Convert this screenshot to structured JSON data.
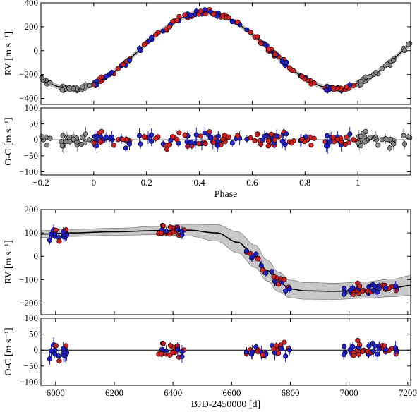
{
  "chart_data": [
    {
      "type": "scatter",
      "ylabel": "RV [m s⁻¹]",
      "xlim": [
        -0.2,
        1.2
      ],
      "ylim": [
        -450,
        400
      ],
      "xticks": [
        -0.2,
        0,
        0.2,
        0.4,
        0.6,
        0.8,
        1
      ],
      "yticks": [
        -400,
        -200,
        0,
        200,
        400
      ],
      "model": {
        "amplitude": 320,
        "peak_phase": 0.42
      },
      "band": "model uncertainty band (gray)",
      "series_colors": {
        "repeated": "#888888",
        "set_a": "#d42020",
        "set_b": "#1f1fc8"
      }
    },
    {
      "type": "scatter",
      "ylabel": "O-C [m s⁻¹]",
      "xlabel": "Phase",
      "xlim": [
        -0.2,
        1.2
      ],
      "ylim": [
        -110,
        100
      ],
      "xticks": [
        -0.2,
        0,
        0.2,
        0.4,
        0.6,
        0.8,
        1
      ],
      "yticks": [
        -100,
        -50,
        0,
        50,
        100
      ]
    },
    {
      "type": "line",
      "ylabel": "RV [m s⁻¹]",
      "xlim": [
        5950,
        7210
      ],
      "ylim": [
        -250,
        200
      ],
      "xticks": [
        6000,
        6200,
        6400,
        6600,
        6800,
        7000,
        7200
      ],
      "yticks": [
        -200,
        -100,
        0,
        100,
        200
      ],
      "trend_x": [
        5950,
        6050,
        6200,
        6350,
        6450,
        6550,
        6620,
        6680,
        6720,
        6760,
        6800,
        6850,
        6950,
        7050,
        7150,
        7210
      ],
      "trend_y": [
        95,
        100,
        105,
        110,
        112,
        100,
        60,
        0,
        -60,
        -110,
        -140,
        -148,
        -150,
        -145,
        -135,
        -125
      ],
      "band_halfwidth": [
        15,
        15,
        15,
        18,
        25,
        35,
        45,
        48,
        45,
        42,
        38,
        36,
        35,
        35,
        38,
        42
      ]
    },
    {
      "type": "scatter",
      "ylabel": "O-C [m s⁻¹]",
      "xlabel": "BJD-2450000 [d]",
      "xlim": [
        5950,
        7210
      ],
      "ylim": [
        -110,
        100
      ],
      "xticks": [
        6000,
        6200,
        6400,
        6600,
        6800,
        7000,
        7200
      ],
      "yticks": [
        -100,
        -50,
        0,
        50,
        100
      ]
    }
  ]
}
